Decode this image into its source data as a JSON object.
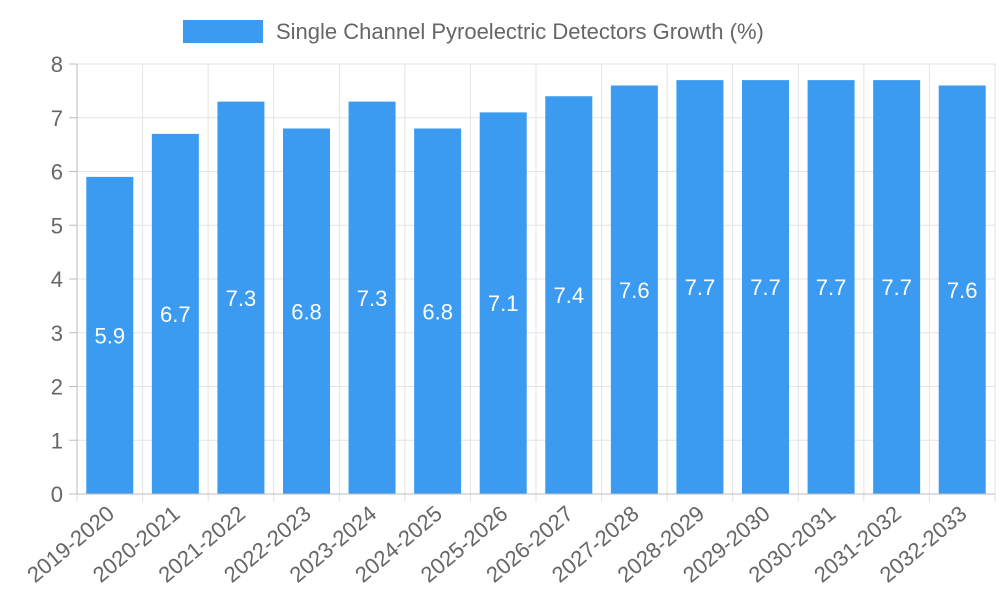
{
  "chart_data": {
    "type": "bar",
    "title": "",
    "xlabel": "",
    "ylabel": "",
    "legend": {
      "position": "top-center",
      "entries": [
        {
          "label": "Single Channel Pyroelectric Detectors Growth (%)",
          "color": "#3a9bf0"
        }
      ]
    },
    "categories": [
      "2019-2020",
      "2020-2021",
      "2021-2022",
      "2022-2023",
      "2023-2024",
      "2024-2025",
      "2025-2026",
      "2026-2027",
      "2027-2028",
      "2028-2029",
      "2029-2030",
      "2030-2031",
      "2031-2032",
      "2032-2033"
    ],
    "series": [
      {
        "name": "Single Channel Pyroelectric Detectors Growth (%)",
        "values": [
          5.9,
          6.7,
          7.3,
          6.8,
          7.3,
          6.8,
          7.1,
          7.4,
          7.6,
          7.7,
          7.7,
          7.7,
          7.7,
          7.6
        ],
        "color": "#3a9bf0"
      }
    ],
    "ylim": [
      0,
      8
    ],
    "yticks": [
      "0",
      "1",
      "2",
      "3",
      "4",
      "5",
      "6",
      "7",
      "8"
    ],
    "grid": true,
    "data_labels": [
      "5.9",
      "6.7",
      "7.3",
      "6.8",
      "7.3",
      "6.8",
      "7.1",
      "7.4",
      "7.6",
      "7.7",
      "7.7",
      "7.7",
      "7.7",
      "7.6"
    ],
    "colors": {
      "bar": "#3a9bf0",
      "grid": "#e3e3e3",
      "axis": "#bdbdbd",
      "tick_text": "#666666",
      "data_label": "#ffffff"
    }
  }
}
